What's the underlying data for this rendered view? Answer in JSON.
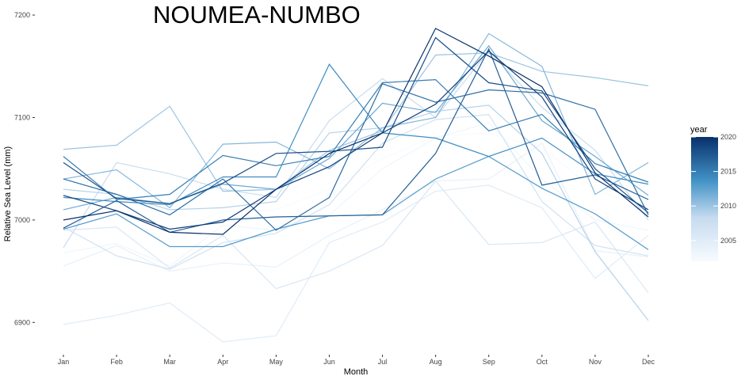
{
  "chart_data": {
    "type": "line",
    "title": "NOUMEA-NUMBO",
    "xlabel": "Month",
    "ylabel": "Relative Sea Level (mm)",
    "categories": [
      "Jan",
      "Feb",
      "Mar",
      "Apr",
      "May",
      "Jun",
      "Jul",
      "Aug",
      "Sep",
      "Oct",
      "Nov",
      "Dec"
    ],
    "yticks": [
      6900,
      7000,
      7100,
      7200
    ],
    "ylim": [
      6867,
      7207
    ],
    "grid": false,
    "legend": {
      "title": "year",
      "position": "right",
      "type": "colorbar",
      "range": [
        2002,
        2020
      ],
      "ticks": [
        2005,
        2010,
        2015,
        2020
      ],
      "color_low": "#f7fbff",
      "color_high": "#08306b"
    },
    "series": [
      {
        "year": 2002,
        "values": [
          7000,
          7005,
          6990,
          7008,
          7010,
          7030,
          7060,
          7082,
          7085,
          7070,
          7030,
          7010
        ]
      },
      {
        "year": 2003,
        "values": [
          6968,
          6977,
          6955,
          6995,
          6990,
          7005,
          7050,
          7080,
          7095,
          7040,
          7000,
          6990
        ]
      },
      {
        "year": 2004,
        "values": [
          6955,
          6975,
          6950,
          6958,
          6954,
          6985,
          7010,
          7038,
          7040,
          7075,
          6970,
          6964
        ]
      },
      {
        "year": 2005,
        "values": [
          6898,
          6907,
          6919,
          6881,
          6887,
          6978,
          6998,
          7028,
          7034,
          7012,
          6943,
          6985
        ]
      },
      {
        "year": 2006,
        "values": [
          6990,
          6993,
          6953,
          6985,
          6933,
          6950,
          6975,
          7038,
          6976,
          6978,
          6998,
          6929
        ]
      },
      {
        "year": 2007,
        "values": [
          6993,
          6965,
          6952,
          6978,
          6987,
          7015,
          7075,
          7098,
          7103,
          7018,
          6975,
          6965
        ]
      },
      {
        "year": 2008,
        "values": [
          6973,
          7056,
          7045,
          7030,
          7022,
          7097,
          7138,
          7100,
          7165,
          7110,
          7068,
          7000
        ]
      },
      {
        "year": 2009,
        "values": [
          7030,
          7025,
          7010,
          7012,
          7018,
          7085,
          7090,
          7106,
          7112,
          7065,
          6969,
          6902
        ]
      },
      {
        "year": 2010,
        "values": [
          7069,
          7073,
          7111,
          7028,
          7030,
          7068,
          7087,
          7161,
          7163,
          7145,
          7139,
          7131
        ]
      },
      {
        "year": 2011,
        "values": [
          7040,
          7049,
          7012,
          7074,
          7076,
          7050,
          7090,
          7100,
          7182,
          7150,
          7025,
          7056
        ]
      },
      {
        "year": 2012,
        "values": [
          7010,
          7022,
          7016,
          7035,
          7030,
          7060,
          7114,
          7105,
          7170,
          7097,
          7062,
          7024
        ]
      },
      {
        "year": 2013,
        "values": [
          6991,
          7006,
          6974,
          6974,
          6991,
          7004,
          7005,
          7040,
          7062,
          7031,
          7006,
          6971
        ]
      },
      {
        "year": 2014,
        "values": [
          7022,
          7018,
          7015,
          7042,
          7042,
          7152,
          7085,
          7080,
          7062,
          7080,
          7045,
          7035
        ]
      },
      {
        "year": 2015,
        "values": [
          7062,
          7020,
          7025,
          7063,
          7053,
          7062,
          7134,
          7137,
          7087,
          7103,
          7055,
          7037
        ]
      },
      {
        "year": 2016,
        "values": [
          7040,
          7025,
          7005,
          7040,
          6990,
          7022,
          7133,
          7115,
          7127,
          7124,
          7108,
          7005
        ]
      },
      {
        "year": 2017,
        "values": [
          6992,
          7019,
          6988,
          7000,
          7003,
          7004,
          7005,
          7065,
          7167,
          7034,
          7044,
          7020
        ]
      },
      {
        "year": 2018,
        "values": [
          7056,
          7021,
          7016,
          7036,
          7065,
          7067,
          7071,
          7178,
          7134,
          7126,
          7050,
          7007
        ]
      },
      {
        "year": 2019,
        "values": [
          7024,
          7009,
          6991,
          6998,
          7030,
          7052,
          7085,
          7113,
          7165,
          7120,
          7040,
          7010
        ]
      },
      {
        "year": 2020,
        "values": [
          7000,
          7009,
          6988,
          6986,
          7030,
          7065,
          7085,
          7187,
          7160,
          7130,
          7046,
          7003
        ]
      }
    ]
  }
}
